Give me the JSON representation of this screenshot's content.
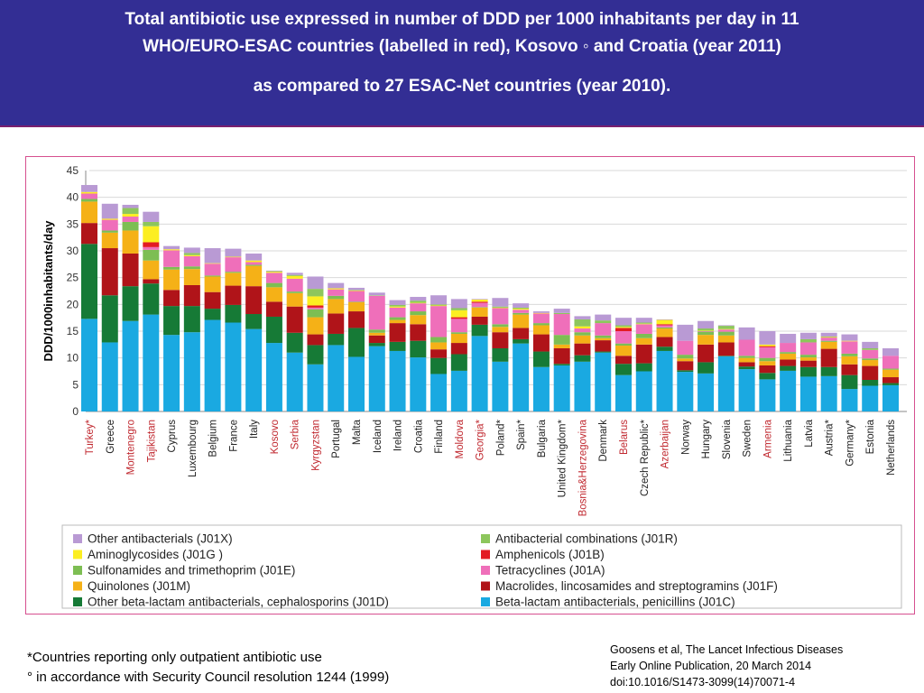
{
  "title": {
    "line1": "Total antibiotic use expressed in number of DDD per 1000 inhabitants per day in 11",
    "line2": "WHO/EURO-ESAC countries (labelled in red), Kosovo ◦  and Croatia (year 2011)",
    "line3": "as  compared to 27 ESAC-Net countries (year 2010)."
  },
  "footnotes": {
    "asterisk": "*Countries reporting only outpatient antibiotic use",
    "degree": "° in accordance with Security Council resolution 1244 (1999)"
  },
  "citation": {
    "line1": "Goosens et al, The Lancet Infectious Diseases",
    "line2": "Early Online Publication, 20 March 2014",
    "line3": "doi:10.1016/S1473-3099(14)70071-4"
  },
  "chart_data": {
    "type": "bar",
    "stacked": true,
    "ylabel": "DDD/1000inhabitants/day",
    "ylim": [
      0,
      45
    ],
    "yticks": [
      0,
      5,
      10,
      15,
      20,
      25,
      30,
      35,
      40,
      45
    ],
    "grid": true,
    "legend_position": "bottom",
    "categories": [
      "Turkey*",
      "Greece",
      "Montenegro",
      "Tajikistan",
      "Cyprus",
      "Luxembourg",
      "Belgium",
      "France",
      "Italy",
      "Kosovo",
      "Serbia",
      "Kyrgyzstan",
      "Portugal",
      "Malta",
      "Iceland",
      "Ireland",
      "Croatia",
      "Finland",
      "Moldova",
      "Georgia*",
      "Poland*",
      "Spain*",
      "Bulgaria",
      "United Kingdom*",
      "Bosnia&Herzegovina",
      "Denmark",
      "Belarus",
      "Czech Republic*",
      "Azerbaijan",
      "Norway",
      "Hungary",
      "Slovenia",
      "Sweden",
      "Armenia",
      "Lithuania",
      "Latvia",
      "Austria*",
      "Germany*",
      "Estonia",
      "Netherlands"
    ],
    "highlighted_categories": [
      "Turkey*",
      "Montenegro",
      "Tajikistan",
      "Kosovo",
      "Serbia",
      "Kyrgyzstan",
      "Moldova",
      "Georgia*",
      "Bosnia&Herzegovina",
      "Belarus",
      "Azerbaijan",
      "Armenia"
    ],
    "highlight_color": "#c0282f",
    "series": [
      {
        "name": "Beta-lactam antibacterials, penicillins (J01C)",
        "color": "#1aa9e1",
        "values": [
          17.3,
          12.9,
          16.9,
          18.1,
          14.3,
          14.8,
          17.1,
          16.6,
          15.4,
          12.8,
          11.0,
          8.8,
          12.4,
          10.2,
          12.2,
          11.3,
          10.1,
          7.0,
          7.6,
          14.1,
          9.3,
          12.7,
          8.3,
          8.6,
          9.3,
          11.0,
          6.8,
          7.5,
          11.3,
          7.4,
          7.1,
          10.3,
          7.9,
          6.0,
          7.6,
          6.5,
          6.6,
          4.2,
          4.8,
          4.9
        ]
      },
      {
        "name": "Other beta-lactam antibacterials, cephalosporins (J01D)",
        "color": "#167a36",
        "values": [
          14.0,
          8.8,
          6.5,
          5.8,
          5.4,
          4.9,
          2.1,
          3.3,
          2.8,
          4.9,
          3.7,
          3.6,
          2.1,
          5.4,
          0.6,
          1.7,
          3.1,
          3.0,
          3.1,
          2.1,
          2.5,
          0.8,
          2.9,
          0.3,
          1.2,
          0.2,
          2.1,
          1.5,
          0.8,
          0.3,
          2.1,
          0.1,
          0.5,
          1.2,
          0.9,
          1.8,
          1.7,
          2.6,
          1.1,
          0.4
        ]
      },
      {
        "name": "Macrolides, lincosamides and streptogramins (J01F)",
        "color": "#b01419",
        "values": [
          3.9,
          8.8,
          6.1,
          0.8,
          3.0,
          3.9,
          3.1,
          3.6,
          5.2,
          2.8,
          4.9,
          2.0,
          3.8,
          3.1,
          1.4,
          3.5,
          3.1,
          1.6,
          2.1,
          1.5,
          3.0,
          2.1,
          3.2,
          2.9,
          2.2,
          2.1,
          1.5,
          3.5,
          1.8,
          1.7,
          3.3,
          2.5,
          0.8,
          1.4,
          1.2,
          1.2,
          3.4,
          2.0,
          2.6,
          1.1
        ]
      },
      {
        "name": "Quinolones (J01M)",
        "color": "#f5b117",
        "values": [
          4.0,
          2.9,
          4.3,
          3.5,
          3.8,
          3.0,
          2.9,
          2.4,
          3.8,
          2.7,
          2.5,
          3.2,
          2.7,
          1.7,
          0.5,
          0.6,
          1.7,
          1.3,
          1.7,
          1.7,
          1.0,
          2.5,
          1.7,
          0.7,
          1.5,
          0.4,
          1.9,
          1.2,
          1.6,
          0.5,
          1.8,
          1.3,
          0.8,
          0.8,
          1.1,
          0.6,
          1.3,
          1.5,
          1.1,
          1.4
        ]
      },
      {
        "name": "Sulfonamides and trimethoprim (J01E)",
        "color": "#7dbe53",
        "values": [
          0.5,
          0.4,
          1.6,
          2.0,
          0.5,
          0.5,
          0.2,
          0.2,
          0.2,
          0.8,
          0.3,
          1.5,
          0.6,
          0.1,
          0.6,
          0.5,
          0.7,
          1.0,
          0.3,
          0.1,
          0.5,
          0.3,
          0.4,
          1.8,
          0.6,
          0.5,
          0.4,
          0.8,
          0.2,
          0.7,
          0.6,
          0.7,
          0.4,
          0.6,
          0.3,
          0.5,
          0.2,
          0.5,
          0.3,
          0.2
        ]
      },
      {
        "name": "Tetracyclines (J01A)",
        "color": "#ef6fba",
        "values": [
          1.0,
          2.0,
          1.0,
          0.5,
          3.1,
          1.9,
          2.2,
          2.7,
          0.5,
          1.9,
          2.4,
          0.3,
          1.2,
          2.0,
          6.3,
          1.8,
          1.5,
          5.8,
          2.5,
          0.8,
          3.0,
          0.6,
          1.8,
          3.9,
          0.7,
          2.3,
          2.3,
          1.8,
          0.4,
          2.6,
          0.1,
          0.4,
          3.0,
          2.0,
          1.7,
          2.3,
          0.6,
          2.3,
          1.6,
          2.4
        ]
      },
      {
        "name": "Amphenicols (J01B)",
        "color": "#e31b23",
        "values": [
          0,
          0,
          0,
          0.9,
          0,
          0,
          0,
          0,
          0,
          0,
          0,
          0.4,
          0,
          0,
          0,
          0,
          0,
          0,
          0.3,
          0.2,
          0,
          0,
          0,
          0,
          0,
          0,
          0.6,
          0,
          0.2,
          0,
          0,
          0,
          0,
          0.2,
          0,
          0,
          0,
          0,
          0,
          0
        ]
      },
      {
        "name": "Aminoglycosides (J01G )",
        "color": "#fcee21",
        "values": [
          0.3,
          0.2,
          0.5,
          3.0,
          0.2,
          0.2,
          0.1,
          0.1,
          0.3,
          0.2,
          0.5,
          1.7,
          0.2,
          0.1,
          0,
          0.2,
          0.1,
          0.1,
          1.3,
          0.4,
          0.1,
          0.2,
          0.1,
          0,
          0.4,
          0,
          0.2,
          0.1,
          0.8,
          0,
          0.1,
          0.1,
          0,
          0.3,
          0,
          0,
          0.1,
          0.1,
          0,
          0
        ]
      },
      {
        "name": "Antibacterial combinations (J01R)",
        "color": "#8dc65c",
        "values": [
          0,
          0,
          1.1,
          0.8,
          0,
          0.4,
          0,
          0,
          0,
          0.1,
          0.2,
          1.4,
          0,
          0.1,
          0.1,
          0.3,
          0.4,
          0.2,
          0.4,
          0,
          0.2,
          0.2,
          0,
          0.2,
          1.3,
          0.5,
          0.3,
          0.2,
          0,
          0,
          0.4,
          0.6,
          0,
          0,
          0,
          0.6,
          0.1,
          0,
          0.3,
          0
        ]
      },
      {
        "name": "Other antibacterials (J01X)",
        "color": "#b99ad4",
        "values": [
          1.3,
          2.8,
          0.6,
          1.9,
          0.6,
          1.0,
          2.8,
          1.5,
          1.3,
          0.1,
          0.4,
          2.3,
          1.0,
          0.4,
          0.5,
          0.9,
          0.7,
          1.7,
          1.7,
          0.1,
          1.6,
          0.8,
          0.3,
          0.8,
          0.6,
          1.1,
          1.4,
          0.9,
          0.1,
          3.0,
          1.4,
          0.1,
          2.3,
          2.5,
          1.7,
          1.2,
          0.7,
          1.2,
          1.2,
          1.4
        ]
      }
    ],
    "legend_order": [
      "Other antibacterials (J01X)",
      "Antibacterial combinations (J01R)",
      "Aminoglycosides (J01G )",
      "Amphenicols (J01B)",
      "Sulfonamides and trimethoprim (J01E)",
      "Tetracyclines (J01A)",
      "Quinolones (J01M)",
      "Macrolides, lincosamides and streptogramins (J01F)",
      "Other beta-lactam antibacterials, cephalosporins (J01D)",
      "Beta-lactam antibacterials, penicillins (J01C)"
    ],
    "colors": {
      "axis": "#888888",
      "grid": "#d9d9d9",
      "legend_border": "#bbbbbb"
    }
  }
}
